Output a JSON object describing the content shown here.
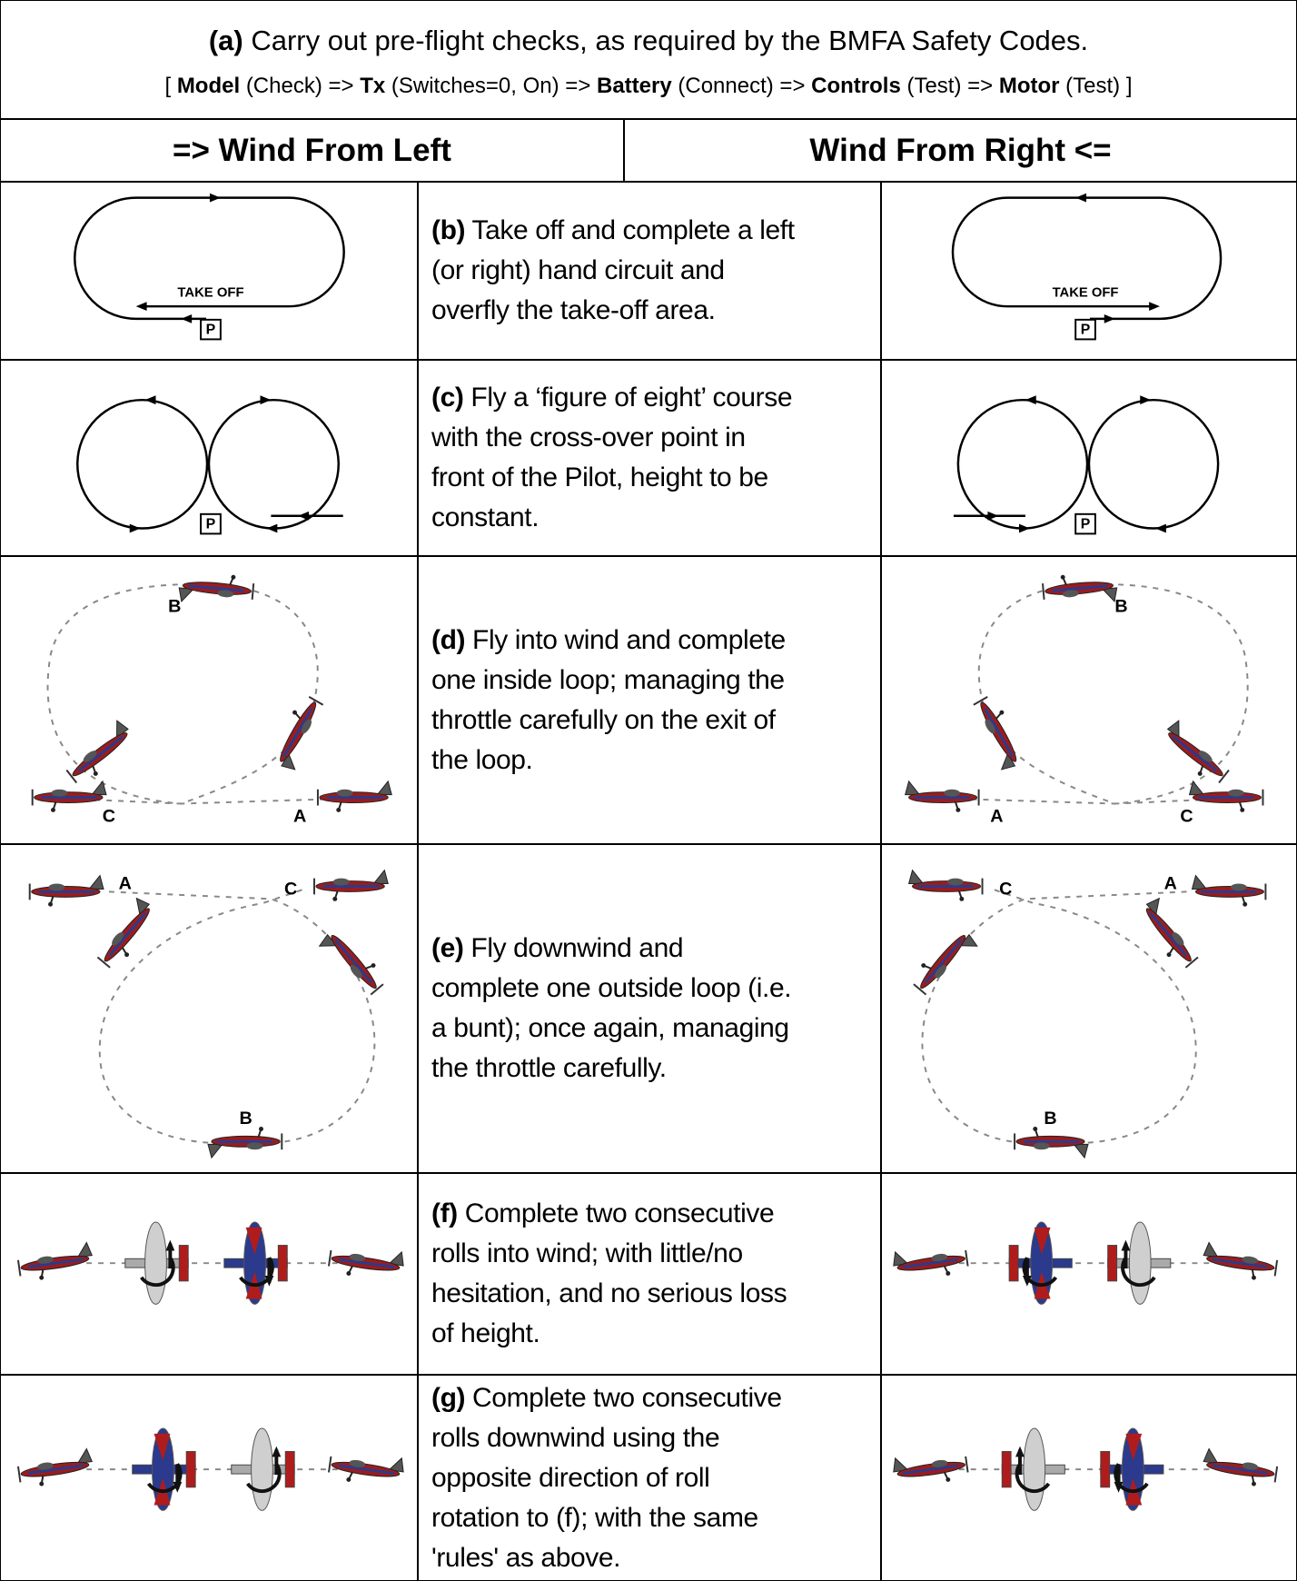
{
  "header": {
    "label": "(a)",
    "text": "Carry out pre-flight checks, as required by the BMFA Safety Codes.",
    "sequence": {
      "open": "[",
      "close": "]",
      "arrow": "=>",
      "steps": [
        {
          "name": "Model",
          "detail": "(Check)"
        },
        {
          "name": "Tx",
          "detail": "(Switches=0, On)"
        },
        {
          "name": "Battery",
          "detail": "(Connect)"
        },
        {
          "name": "Controls",
          "detail": "(Test)"
        },
        {
          "name": "Motor",
          "detail": "(Test)"
        }
      ]
    }
  },
  "columns": [
    "=> Wind From Left",
    "Wind From Right <="
  ],
  "diagram_labels": {
    "take_off": "TAKE OFF",
    "pilot": "P",
    "a": "A",
    "b": "B",
    "c": "C"
  },
  "steps": [
    {
      "label": "(b)",
      "lines": [
        "Take off and complete a left",
        "(or right) hand circuit and",
        "overfly the take-off area."
      ]
    },
    {
      "label": "(c)",
      "lines": [
        "Fly a ‘figure of eight’ course",
        "with the cross-over point in",
        "front of the Pilot, height to be",
        "constant."
      ]
    },
    {
      "label": "(d)",
      "lines": [
        "Fly into wind and complete",
        "one inside loop; managing the",
        "throttle carefully on the exit of",
        "the loop."
      ]
    },
    {
      "label": "(e)",
      "lines": [
        "Fly downwind and",
        "complete one outside loop (i.e.",
        "a bunt); once again, managing",
        "the throttle carefully."
      ]
    },
    {
      "label": "(f)",
      "lines": [
        "Complete two consecutive",
        "rolls into wind; with little/no",
        "hesitation, and no serious loss",
        "of height."
      ]
    },
    {
      "label": "(g)",
      "lines": [
        "Complete two consecutive",
        "rolls downwind using the",
        "opposite direction of roll",
        "rotation to (f); with the same",
        "'rules' as above."
      ]
    }
  ]
}
